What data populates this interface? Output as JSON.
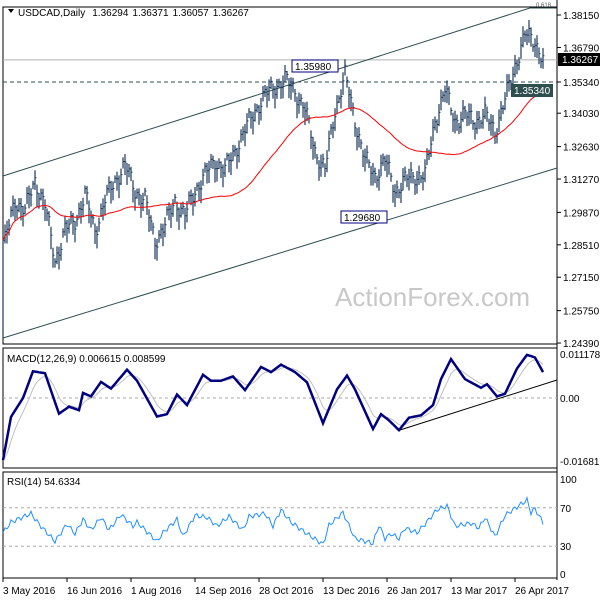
{
  "chart_data": [
    {
      "type": "bar",
      "subtype": "ohlc",
      "title": "USDCAD,Daily",
      "ohlc_last": {
        "open": "1.36294",
        "high": "1.36371",
        "low": "1.36057",
        "close": "1.36267"
      },
      "y_ticks": [
        "1.38150",
        "1.36790",
        "1.35340",
        "1.34030",
        "1.32630",
        "1.31270",
        "1.29870",
        "1.28510",
        "1.27150",
        "1.25750",
        "1.24390"
      ],
      "ylim": [
        1.2439,
        1.3844
      ],
      "current_price_label": "1.36267",
      "horizontal_level_label": "1.35340",
      "annotations": [
        "1.35980",
        "1.29680"
      ],
      "fibo_label": "0.618",
      "moving_average_color": "#ff0000",
      "bar_color": "#1b3a5c",
      "watermark": "ActionForex.com",
      "x_tick_labels": [
        "3 May 2016",
        "16 Jun 2016",
        "1 Aug 2016",
        "14 Sep 2016",
        "28 Oct 2016",
        "13 Dec 2016",
        "26 Jan 2017",
        "13 Mar 2017",
        "26 Apr 2017"
      ],
      "x_tick_bars": [
        0,
        32,
        64,
        96,
        128,
        160,
        192,
        224,
        256
      ],
      "close_by_bar": [
        [
          1,
          1.287
        ],
        [
          6,
          1.3039
        ],
        [
          11,
          1.2997
        ],
        [
          16,
          1.3123
        ],
        [
          21,
          1.3018
        ],
        [
          26,
          1.2787
        ],
        [
          31,
          1.2913
        ],
        [
          36,
          1.2955
        ],
        [
          41,
          1.306
        ],
        [
          46,
          1.2913
        ],
        [
          51,
          1.3039
        ],
        [
          56,
          1.3123
        ],
        [
          61,
          1.3186
        ],
        [
          66,
          1.3081
        ],
        [
          71,
          1.3039
        ],
        [
          76,
          1.287
        ],
        [
          81,
          1.2934
        ],
        [
          86,
          1.3039
        ],
        [
          91,
          1.2976
        ],
        [
          96,
          1.3081
        ],
        [
          101,
          1.3144
        ],
        [
          106,
          1.3207
        ],
        [
          111,
          1.3165
        ],
        [
          116,
          1.3249
        ],
        [
          121,
          1.3333
        ],
        [
          126,
          1.3417
        ],
        [
          131,
          1.3479
        ],
        [
          136,
          1.3521
        ],
        [
          141,
          1.3542
        ],
        [
          146,
          1.35
        ],
        [
          151,
          1.3417
        ],
        [
          156,
          1.3249
        ],
        [
          161,
          1.3165
        ],
        [
          166,
          1.3417
        ],
        [
          171,
          1.3563
        ],
        [
          176,
          1.3375
        ],
        [
          181,
          1.3207
        ],
        [
          186,
          1.3144
        ],
        [
          191,
          1.3207
        ],
        [
          196,
          1.3081
        ],
        [
          201,
          1.3123
        ],
        [
          206,
          1.3144
        ],
        [
          211,
          1.3144
        ],
        [
          216,
          1.3375
        ],
        [
          221,
          1.35
        ],
        [
          226,
          1.3375
        ],
        [
          231,
          1.3396
        ],
        [
          236,
          1.3375
        ],
        [
          241,
          1.3396
        ],
        [
          246,
          1.3333
        ],
        [
          251,
          1.3459
        ],
        [
          256,
          1.3605
        ],
        [
          261,
          1.3731
        ],
        [
          266,
          1.371
        ],
        [
          270,
          1.3627
        ]
      ]
    },
    {
      "type": "line",
      "title": "MACD(12,26,9) 0.006615 0.008599",
      "y_ticks": [
        "0.011178",
        "0.00",
        "-0.016812"
      ],
      "ylim": [
        -0.016812,
        0.011178
      ],
      "main_color": "#000080",
      "signal_color": "#c0c0c0",
      "macd_by_bar": [
        [
          0,
          -0.0158
        ],
        [
          4,
          -0.0048
        ],
        [
          10,
          0
        ],
        [
          15,
          0.0068
        ],
        [
          21,
          0.0063
        ],
        [
          28,
          -0.004
        ],
        [
          33,
          -0.0022
        ],
        [
          38,
          -0.0031
        ],
        [
          40,
          0.0013
        ],
        [
          44,
          0.0004
        ],
        [
          49,
          0.0041
        ],
        [
          54,
          0.0024
        ],
        [
          62,
          0.0072
        ],
        [
          67,
          0.0044
        ],
        [
          77,
          -0.0047
        ],
        [
          82,
          -0.0041
        ],
        [
          87,
          0.0009
        ],
        [
          92,
          -0.0018
        ],
        [
          100,
          0.0059
        ],
        [
          104,
          0.0044
        ],
        [
          109,
          0.0044
        ],
        [
          115,
          0.0055
        ],
        [
          121,
          0.002
        ],
        [
          129,
          0.0079
        ],
        [
          134,
          0.0066
        ],
        [
          139,
          0.0085
        ],
        [
          146,
          0.0066
        ],
        [
          152,
          0.004
        ],
        [
          160,
          -0.0064
        ],
        [
          167,
          0.0022
        ],
        [
          172,
          0.0057
        ],
        [
          176,
          0.0022
        ],
        [
          185,
          -0.0079
        ],
        [
          189,
          -0.0041
        ],
        [
          193,
          -0.0057
        ],
        [
          198,
          -0.0082
        ],
        [
          203,
          -0.005
        ],
        [
          209,
          -0.0044
        ],
        [
          215,
          -0.0018
        ],
        [
          219,
          0.0048
        ],
        [
          224,
          0.0099
        ],
        [
          231,
          0.0048
        ],
        [
          239,
          0.0026
        ],
        [
          242,
          0.0035
        ],
        [
          247,
          0.0004
        ],
        [
          251,
          0.0011
        ],
        [
          257,
          0.0075
        ],
        [
          262,
          0.011
        ],
        [
          266,
          0.0103
        ],
        [
          270,
          0.0066
        ]
      ]
    },
    {
      "type": "line",
      "title": "RSI(14) 54.6334",
      "y_ticks": [
        "100",
        "70",
        "30",
        "0"
      ],
      "ylim": [
        0,
        100
      ],
      "color": "#1e90ff",
      "rsi_by_bar": [
        [
          0,
          44
        ],
        [
          4,
          55
        ],
        [
          14,
          64
        ],
        [
          18,
          53
        ],
        [
          26,
          35
        ],
        [
          32,
          53
        ],
        [
          36,
          43
        ],
        [
          40,
          58
        ],
        [
          44,
          47
        ],
        [
          49,
          60
        ],
        [
          53,
          47
        ],
        [
          59,
          63
        ],
        [
          65,
          51
        ],
        [
          67,
          55
        ],
        [
          77,
          35
        ],
        [
          80,
          44
        ],
        [
          87,
          58
        ],
        [
          90,
          40
        ],
        [
          96,
          62
        ],
        [
          102,
          60
        ],
        [
          107,
          51
        ],
        [
          113,
          61
        ],
        [
          120,
          47
        ],
        [
          123,
          61
        ],
        [
          131,
          64
        ],
        [
          135,
          51
        ],
        [
          139,
          68
        ],
        [
          144,
          55
        ],
        [
          152,
          43
        ],
        [
          160,
          32
        ],
        [
          163,
          52
        ],
        [
          170,
          65
        ],
        [
          176,
          38
        ],
        [
          185,
          33
        ],
        [
          188,
          52
        ],
        [
          191,
          38
        ],
        [
          194,
          43
        ],
        [
          198,
          38
        ],
        [
          201,
          49
        ],
        [
          207,
          44
        ],
        [
          211,
          53
        ],
        [
          217,
          68
        ],
        [
          222,
          72
        ],
        [
          226,
          51
        ],
        [
          234,
          54
        ],
        [
          238,
          49
        ],
        [
          241,
          60
        ],
        [
          246,
          40
        ],
        [
          251,
          62
        ],
        [
          257,
          71
        ],
        [
          262,
          78
        ],
        [
          264,
          65
        ],
        [
          266,
          69
        ],
        [
          270,
          54.6
        ]
      ]
    }
  ]
}
